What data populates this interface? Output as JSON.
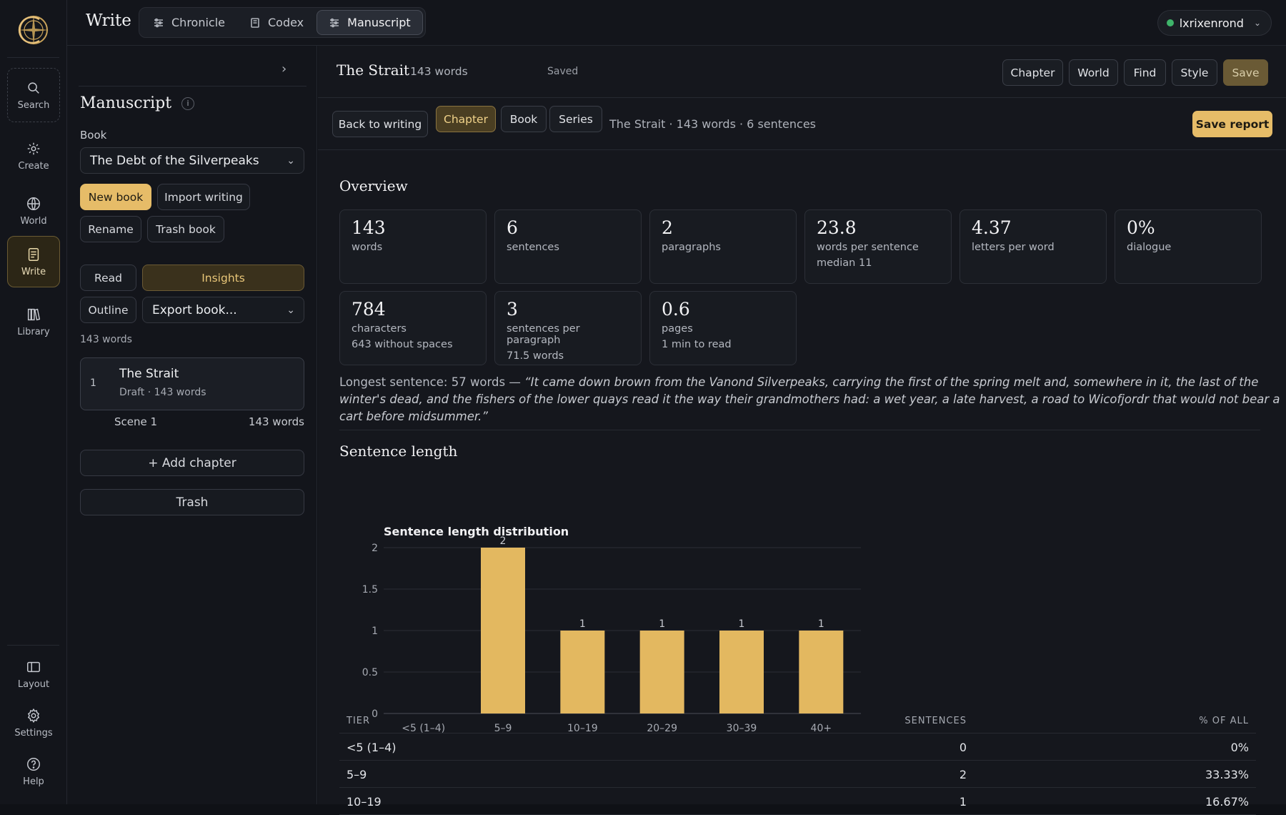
{
  "app": {
    "title": "Write"
  },
  "rail": {
    "items": [
      {
        "label": "Search",
        "icon": "search-icon"
      },
      {
        "label": "Create",
        "icon": "sparkle-icon"
      },
      {
        "label": "World",
        "icon": "globe-icon"
      },
      {
        "label": "Write",
        "icon": "document-icon"
      },
      {
        "label": "Library",
        "icon": "books-icon"
      }
    ],
    "bottom": [
      {
        "label": "Layout",
        "icon": "layout-icon"
      },
      {
        "label": "Settings",
        "icon": "gear-icon"
      },
      {
        "label": "Help",
        "icon": "help-icon"
      }
    ]
  },
  "topbar": {
    "tabs": [
      {
        "label": "Chronicle",
        "icon": "sliders-icon"
      },
      {
        "label": "Codex",
        "icon": "book-icon"
      },
      {
        "label": "Manuscript",
        "icon": "sliders-icon"
      }
    ],
    "active_tab": "Manuscript",
    "user": "lxrixenrond",
    "status_color": "#3fb46a"
  },
  "sidebar": {
    "title": "Manuscript",
    "info": "i",
    "book_label": "Book",
    "book_value": "The Debt of the Silverpeaks",
    "buttons": {
      "new_book": "New book",
      "import": "Import writing",
      "rename": "Rename",
      "trash_book": "Trash book"
    },
    "modes": {
      "read": "Read",
      "insights": "Insights",
      "outline": "Outline",
      "export": "Export book..."
    },
    "total_words": "143 words",
    "chapter": {
      "num": "1",
      "name": "The Strait",
      "meta": "Draft · 143 words"
    },
    "scene": {
      "name": "Scene 1",
      "words": "143 words"
    },
    "add_chapter": "+ Add chapter",
    "trash": "Trash"
  },
  "doc": {
    "title": "The Strait",
    "words": "143 words",
    "saved": "Saved",
    "header_buttons": [
      "Chapter",
      "World",
      "Find",
      "Style",
      "Save"
    ],
    "back": "Back to writing",
    "scopes": [
      "Chapter",
      "Book",
      "Series"
    ],
    "active_scope": "Chapter",
    "sub_info": "The Strait · 143 words · 6 sentences",
    "save_report": "Save report"
  },
  "overview": {
    "title": "Overview",
    "stats": [
      {
        "value": "143",
        "caption": "words",
        "sub": ""
      },
      {
        "value": "6",
        "caption": "sentences",
        "sub": ""
      },
      {
        "value": "2",
        "caption": "paragraphs",
        "sub": ""
      },
      {
        "value": "23.8",
        "caption": "words per sentence",
        "sub": "median 11"
      },
      {
        "value": "4.37",
        "caption": "letters per word",
        "sub": ""
      },
      {
        "value": "0%",
        "caption": "dialogue",
        "sub": ""
      },
      {
        "value": "784",
        "caption": "characters",
        "sub": "643 without spaces"
      },
      {
        "value": "3",
        "caption": "sentences per paragraph",
        "sub": "71.5 words"
      },
      {
        "value": "0.6",
        "caption": "pages",
        "sub": "1 min to read"
      }
    ],
    "longest_label": "Longest sentence: 57 words —",
    "longest_quote": "“It came down brown from the Vanond Silverpeaks, carrying the first of the spring melt and, somewhere in it, the last of the winter's dead, and the fishers of the lower quays read it the way their grandmothers had: a wet year, a late harvest, a road to Wicofjordr that would not bear a cart before midsummer.”"
  },
  "sentence_length": {
    "title": "Sentence length",
    "table": {
      "headers": [
        "TIER",
        "SENTENCES",
        "% OF ALL"
      ],
      "rows": [
        [
          "<5 (1–4)",
          "0",
          "0%"
        ],
        [
          "5–9",
          "2",
          "33.33%"
        ],
        [
          "10–19",
          "1",
          "16.67%"
        ]
      ]
    }
  },
  "chart_data": {
    "type": "bar",
    "title": "Sentence length distribution",
    "categories": [
      "<5 (1–4)",
      "5–9",
      "10–19",
      "20–29",
      "30–39",
      "40+"
    ],
    "values": [
      0,
      2,
      1,
      1,
      1,
      1
    ],
    "ylim": [
      0,
      2
    ],
    "yticks": [
      "0",
      "0.5",
      "1",
      "1.5",
      "2"
    ],
    "grid": true,
    "bar_color": "#e3b860",
    "xlabel": "",
    "ylabel": ""
  }
}
